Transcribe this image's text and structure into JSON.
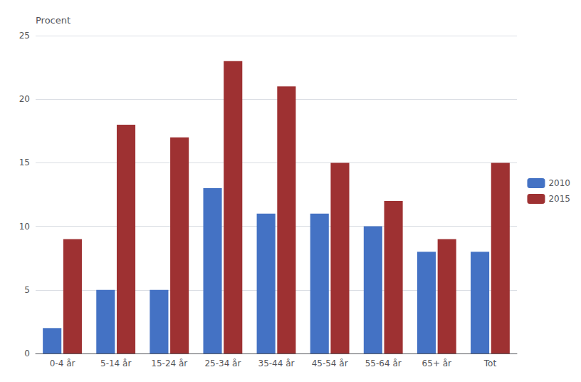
{
  "chart_data": {
    "type": "bar",
    "ylabel": "Procent",
    "categories": [
      "0-4 år",
      "5-14 år",
      "15-24 år",
      "25-34 år",
      "35-44 år",
      "45-54 år",
      "55-64 år",
      "65+ år",
      "Tot"
    ],
    "series": [
      {
        "name": "2010",
        "color": "#4472C4",
        "values": [
          2,
          5,
          5,
          13,
          11,
          11,
          10,
          8,
          8
        ]
      },
      {
        "name": "2015",
        "color": "#9E3132",
        "values": [
          9,
          18,
          17,
          23,
          21,
          15,
          12,
          9,
          15
        ]
      }
    ],
    "ylim": [
      0,
      25
    ],
    "yticks": [
      0,
      5,
      10,
      15,
      20,
      25
    ],
    "grid": true,
    "legend": "right"
  }
}
